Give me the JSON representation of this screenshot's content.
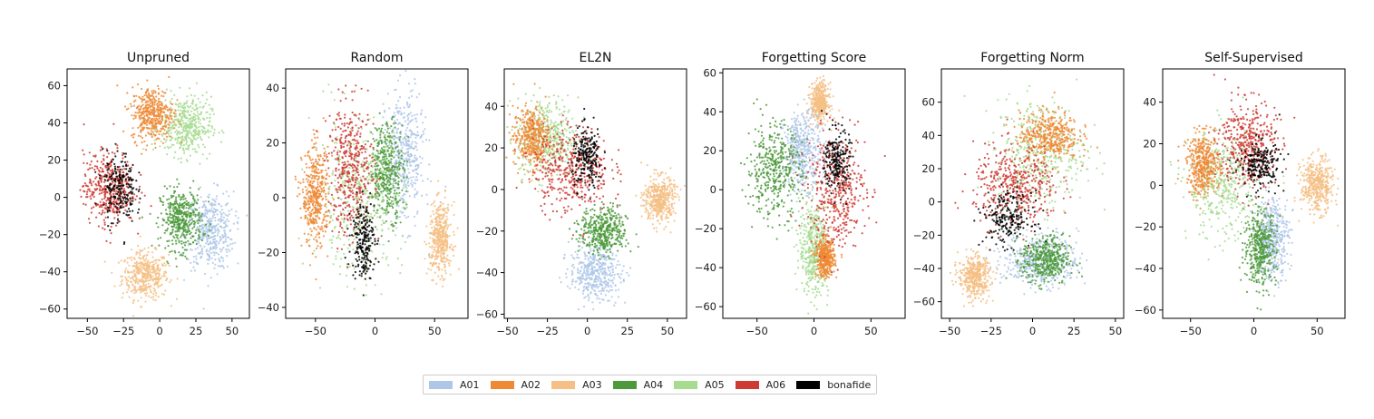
{
  "chart_data": [
    {
      "type": "scatter",
      "title": "Unpruned",
      "xlim": [
        -64,
        62
      ],
      "ylim": [
        -65,
        69
      ],
      "xticks": [
        -50,
        -25,
        0,
        25,
        50
      ],
      "xtick_labels": [
        "−50",
        "−25",
        "0",
        "25",
        "50"
      ],
      "yticks": [
        -60,
        -40,
        -20,
        0,
        20,
        40,
        60
      ],
      "ytick_labels": [
        "−60",
        "−40",
        "−20",
        "0",
        "20",
        "40",
        "60"
      ],
      "clusters": [
        {
          "series": "A03",
          "x": -10,
          "y": -42,
          "sx": 10,
          "sy": 8
        },
        {
          "series": "A01",
          "x": 35,
          "y": -18,
          "sx": 10,
          "sy": 13
        },
        {
          "series": "A04",
          "x": 15,
          "y": -12,
          "sx": 9,
          "sy": 10
        },
        {
          "series": "A05",
          "x": 18,
          "y": 38,
          "sx": 11,
          "sy": 10
        },
        {
          "series": "A02",
          "x": -5,
          "y": 45,
          "sx": 9,
          "sy": 9
        },
        {
          "series": "A06",
          "x": -35,
          "y": 5,
          "sx": 11,
          "sy": 12
        },
        {
          "series": "bonafide",
          "x": -28,
          "y": 5,
          "sx": 7,
          "sy": 12
        }
      ]
    },
    {
      "type": "scatter",
      "title": "Random",
      "xlim": [
        -75,
        78
      ],
      "ylim": [
        -44,
        47
      ],
      "xticks": [
        -50,
        0,
        50
      ],
      "xtick_labels": [
        "−50",
        "0",
        "50"
      ],
      "yticks": [
        -40,
        -20,
        0,
        20,
        40
      ],
      "ytick_labels": [
        "−40",
        "−20",
        "0",
        "20",
        "40"
      ],
      "clusters": [
        {
          "series": "A03",
          "x": 55,
          "y": -15,
          "sx": 6,
          "sy": 8
        },
        {
          "series": "A01",
          "x": 25,
          "y": 15,
          "sx": 10,
          "sy": 15
        },
        {
          "series": "A04",
          "x": 10,
          "y": 10,
          "sx": 9,
          "sy": 11
        },
        {
          "series": "A05",
          "x": -15,
          "y": 0,
          "sx": 24,
          "sy": 17
        },
        {
          "series": "A02",
          "x": -50,
          "y": 0,
          "sx": 7,
          "sy": 11
        },
        {
          "series": "A06",
          "x": -20,
          "y": 10,
          "sx": 12,
          "sy": 15
        },
        {
          "series": "bonafide",
          "x": -10,
          "y": -15,
          "sx": 6,
          "sy": 9
        }
      ]
    },
    {
      "type": "scatter",
      "title": "EL2N",
      "xlim": [
        -52,
        62
      ],
      "ylim": [
        -62,
        58
      ],
      "xticks": [
        -50,
        -25,
        0,
        25,
        50
      ],
      "xtick_labels": [
        "−50",
        "−25",
        "0",
        "25",
        "50"
      ],
      "yticks": [
        -60,
        -40,
        -20,
        0,
        20,
        40
      ],
      "ytick_labels": [
        "−60",
        "−40",
        "−20",
        "0",
        "20",
        "40"
      ],
      "clusters": [
        {
          "series": "A03",
          "x": 45,
          "y": -5,
          "sx": 6,
          "sy": 7
        },
        {
          "series": "A01",
          "x": 5,
          "y": -40,
          "sx": 10,
          "sy": 8
        },
        {
          "series": "A04",
          "x": 10,
          "y": -20,
          "sx": 9,
          "sy": 7
        },
        {
          "series": "A05",
          "x": -25,
          "y": 25,
          "sx": 12,
          "sy": 12
        },
        {
          "series": "A02",
          "x": -35,
          "y": 25,
          "sx": 7,
          "sy": 9
        },
        {
          "series": "A06",
          "x": -10,
          "y": 10,
          "sx": 15,
          "sy": 13
        },
        {
          "series": "bonafide",
          "x": 0,
          "y": 15,
          "sx": 6,
          "sy": 9
        }
      ]
    },
    {
      "type": "scatter",
      "title": "Forgetting Score",
      "xlim": [
        -80,
        80
      ],
      "ylim": [
        -66,
        62
      ],
      "xticks": [
        -50,
        0,
        50
      ],
      "xtick_labels": [
        "−50",
        "0",
        "50"
      ],
      "yticks": [
        -60,
        -40,
        -20,
        0,
        20,
        40,
        60
      ],
      "ytick_labels": [
        "−60",
        "−40",
        "−20",
        "0",
        "20",
        "40",
        "60"
      ],
      "clusters": [
        {
          "series": "A03",
          "x": 5,
          "y": 45,
          "sx": 5,
          "sy": 6
        },
        {
          "series": "A01",
          "x": -10,
          "y": 20,
          "sx": 10,
          "sy": 12
        },
        {
          "series": "A04",
          "x": -35,
          "y": 10,
          "sx": 15,
          "sy": 15
        },
        {
          "series": "A05",
          "x": 0,
          "y": -30,
          "sx": 8,
          "sy": 15
        },
        {
          "series": "A02",
          "x": 10,
          "y": -35,
          "sx": 5,
          "sy": 6
        },
        {
          "series": "A06",
          "x": 20,
          "y": 0,
          "sx": 16,
          "sy": 18
        },
        {
          "series": "bonafide",
          "x": 20,
          "y": 15,
          "sx": 7,
          "sy": 10
        }
      ]
    },
    {
      "type": "scatter",
      "title": "Forgetting Norm",
      "xlim": [
        -55,
        55
      ],
      "ylim": [
        -70,
        80
      ],
      "xticks": [
        -50,
        -25,
        0,
        25,
        50
      ],
      "xtick_labels": [
        "−50",
        "−25",
        "0",
        "25",
        "50"
      ],
      "yticks": [
        -60,
        -40,
        -20,
        0,
        20,
        40,
        60
      ],
      "ytick_labels": [
        "−60",
        "−40",
        "−20",
        "0",
        "20",
        "40",
        "60"
      ],
      "clusters": [
        {
          "series": "A03",
          "x": -35,
          "y": -45,
          "sx": 6,
          "sy": 8
        },
        {
          "series": "A01",
          "x": 5,
          "y": -35,
          "sx": 14,
          "sy": 10
        },
        {
          "series": "A04",
          "x": 8,
          "y": -35,
          "sx": 9,
          "sy": 9
        },
        {
          "series": "A05",
          "x": 5,
          "y": 30,
          "sx": 17,
          "sy": 20
        },
        {
          "series": "A02",
          "x": 10,
          "y": 40,
          "sx": 11,
          "sy": 9
        },
        {
          "series": "A06",
          "x": -10,
          "y": 10,
          "sx": 16,
          "sy": 15
        },
        {
          "series": "bonafide",
          "x": -15,
          "y": -10,
          "sx": 9,
          "sy": 10
        }
      ]
    },
    {
      "type": "scatter",
      "title": "Self-Supervised",
      "xlim": [
        -72,
        72
      ],
      "ylim": [
        -64,
        56
      ],
      "xticks": [
        -50,
        0,
        50
      ],
      "xtick_labels": [
        "−50",
        "0",
        "50"
      ],
      "yticks": [
        -60,
        -40,
        -20,
        0,
        20,
        40
      ],
      "ytick_labels": [
        "−60",
        "−40",
        "−20",
        "0",
        "20",
        "40"
      ],
      "clusters": [
        {
          "series": "A03",
          "x": 50,
          "y": 0,
          "sx": 8,
          "sy": 8
        },
        {
          "series": "A01",
          "x": 15,
          "y": -25,
          "sx": 8,
          "sy": 12
        },
        {
          "series": "A04",
          "x": 5,
          "y": -30,
          "sx": 8,
          "sy": 11
        },
        {
          "series": "A05",
          "x": -25,
          "y": 0,
          "sx": 17,
          "sy": 16
        },
        {
          "series": "A02",
          "x": -40,
          "y": 10,
          "sx": 8,
          "sy": 9
        },
        {
          "series": "A06",
          "x": -5,
          "y": 20,
          "sx": 14,
          "sy": 13
        },
        {
          "series": "bonafide",
          "x": 5,
          "y": 10,
          "sx": 10,
          "sy": 7
        }
      ]
    }
  ],
  "legend": [
    {
      "label": "A01",
      "color": "#aec7e8"
    },
    {
      "label": "A02",
      "color": "#ee8a36"
    },
    {
      "label": "A03",
      "color": "#f5bf85"
    },
    {
      "label": "A04",
      "color": "#4c9a3b"
    },
    {
      "label": "A05",
      "color": "#a6dc8f"
    },
    {
      "label": "A06",
      "color": "#cf3a33"
    },
    {
      "label": "bonafide",
      "color": "#000000"
    }
  ]
}
